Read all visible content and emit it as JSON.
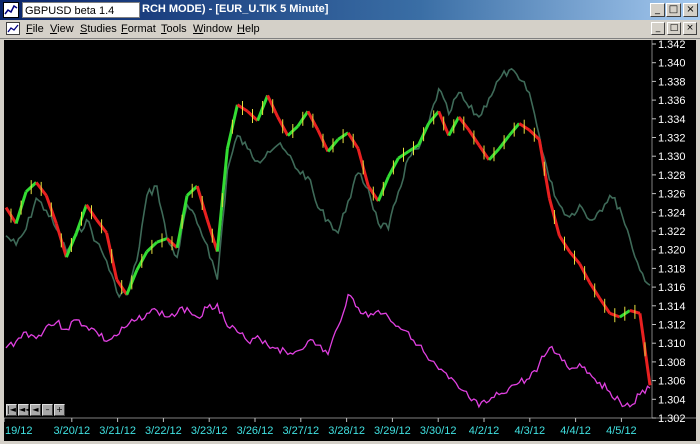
{
  "window": {
    "tab_label": "GBPUSD beta 1.4",
    "title": "RCH MODE) - [EUR_U.TIK 5 Minute]"
  },
  "menu": [
    {
      "label": "File",
      "name": "file"
    },
    {
      "label": "View",
      "name": "view"
    },
    {
      "label": "Studies",
      "name": "studies"
    },
    {
      "label": "Format",
      "name": "format"
    },
    {
      "label": "Tools",
      "name": "tools"
    },
    {
      "label": "Window",
      "name": "window"
    },
    {
      "label": "Help",
      "name": "help"
    }
  ],
  "window_buttons": {
    "minimize": "_",
    "maximize": "□",
    "close": "×"
  },
  "nav_buttons": [
    "|◄",
    "◄◄",
    "◄",
    "–",
    "+"
  ],
  "colors": {
    "price_up": "#33dd33",
    "price_down": "#e82020",
    "price_wick": "#e8e040",
    "comparison": "#3e6a58",
    "indicator": "#e040e0",
    "axis_text": "#ffffff",
    "date_text": "#40e0e0"
  },
  "chart_data": {
    "type": "line",
    "y_axis": {
      "ticks": [
        "1.342",
        "1.340",
        "1.338",
        "1.336",
        "1.334",
        "1.332",
        "1.330",
        "1.328",
        "1.326",
        "1.324",
        "1.322",
        "1.320",
        "1.318",
        "1.316",
        "1.314",
        "1.312",
        "1.310",
        "1.308",
        "1.306",
        "1.304",
        "1.302"
      ],
      "range": [
        1.302,
        1.342
      ]
    },
    "x_axis": {
      "ticks": [
        "19/12",
        "3/20/12",
        "3/21/12",
        "3/22/12",
        "3/23/12",
        "3/26/12",
        "3/27/12",
        "3/28/12",
        "3/29/12",
        "3/30/12",
        "4/2/12",
        "4/3/12",
        "4/4/12",
        "4/5/12"
      ]
    },
    "series": [
      {
        "key": "price",
        "values": [
          1.3245,
          1.3228,
          1.3262,
          1.3272,
          1.3258,
          1.3228,
          1.3192,
          1.3218,
          1.3248,
          1.3232,
          1.3218,
          1.3168,
          1.3152,
          1.3178,
          1.3198,
          1.3208,
          1.3212,
          1.3202,
          1.3258,
          1.3268,
          1.3232,
          1.3198,
          1.3308,
          1.3355,
          1.3348,
          1.3338,
          1.3365,
          1.3342,
          1.3322,
          1.3332,
          1.3348,
          1.3328,
          1.3305,
          1.3318,
          1.3325,
          1.3308,
          1.3268,
          1.3252,
          1.3278,
          1.3298,
          1.3305,
          1.3312,
          1.3335,
          1.3348,
          1.3322,
          1.3342,
          1.3328,
          1.3312,
          1.3296,
          1.3308,
          1.3322,
          1.3335,
          1.3328,
          1.3318,
          1.3255,
          1.3215,
          1.3198,
          1.3185,
          1.3165,
          1.3148,
          1.3132,
          1.3128,
          1.3135,
          1.3132,
          1.3055
        ]
      },
      {
        "key": "comparison",
        "values": [
          1.3215,
          1.3205,
          1.3222,
          1.3255,
          1.3242,
          1.3222,
          1.3198,
          1.3215,
          1.3232,
          1.3208,
          1.3188,
          1.3155,
          1.3152,
          1.3188,
          1.3258,
          1.3268,
          1.3212,
          1.3192,
          1.3248,
          1.3228,
          1.3205,
          1.3168,
          1.3285,
          1.3322,
          1.3308,
          1.3295,
          1.3305,
          1.3312,
          1.3302,
          1.3285,
          1.3278,
          1.3245,
          1.3232,
          1.3218,
          1.3252,
          1.3282,
          1.3265,
          1.3228,
          1.3222,
          1.3262,
          1.3298,
          1.3308,
          1.3335,
          1.3372,
          1.3345,
          1.3368,
          1.3352,
          1.3342,
          1.3362,
          1.3382,
          1.3392,
          1.3382,
          1.3368,
          1.3322,
          1.3275,
          1.3248,
          1.3235,
          1.3248,
          1.3232,
          1.3242,
          1.3258,
          1.3245,
          1.3212,
          1.3178,
          1.3162
        ]
      },
      {
        "key": "indicator",
        "values": [
          1.3095,
          1.3102,
          1.3112,
          1.3105,
          1.3118,
          1.3122,
          1.3115,
          1.3125,
          1.3118,
          1.3112,
          1.3102,
          1.3108,
          1.3118,
          1.3125,
          1.3132,
          1.3135,
          1.3128,
          1.3132,
          1.3138,
          1.3128,
          1.3138,
          1.3142,
          1.3118,
          1.3112,
          1.3102,
          1.3108,
          1.3098,
          1.3095,
          1.3088,
          1.3092,
          1.3102,
          1.3098,
          1.3088,
          1.3118,
          1.3152,
          1.3138,
          1.3128,
          1.3135,
          1.3128,
          1.3118,
          1.3112,
          1.3098,
          1.3082,
          1.3072,
          1.3062,
          1.3052,
          1.3042,
          1.3032,
          1.3038,
          1.3045,
          1.3052,
          1.3058,
          1.3062,
          1.3078,
          1.3095,
          1.3088,
          1.3072,
          1.3078,
          1.3068,
          1.3058,
          1.3048,
          1.3038,
          1.3032,
          1.3045,
          1.3052
        ]
      }
    ]
  }
}
